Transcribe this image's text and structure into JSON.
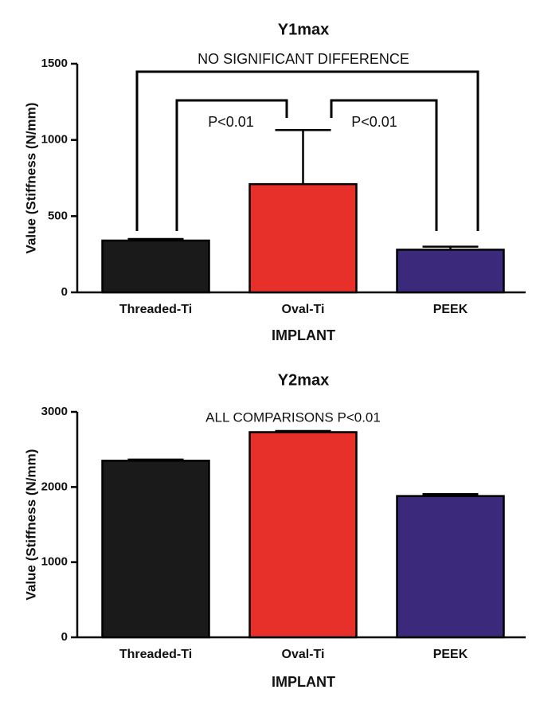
{
  "chart_data": [
    {
      "type": "bar",
      "title": "Y1max",
      "x_label": "IMPLANT",
      "y_label": "Value (Stiffness (N/mm)",
      "categories": [
        "Threaded-Ti",
        "Oval-Ti",
        "PEEK"
      ],
      "values": [
        340,
        710,
        280
      ],
      "errors": [
        10,
        355,
        20
      ],
      "colors": [
        "#1a1a1a",
        "#e8302a",
        "#3b2a7c"
      ],
      "ylim": [
        0,
        1500
      ],
      "yticks": [
        0,
        500,
        1000,
        1500
      ],
      "annotations": [
        "NO SIGNIFICANT DIFFERENCE",
        "P<0.01",
        "P<0.01"
      ]
    },
    {
      "type": "bar",
      "title": "Y2max",
      "x_label": "IMPLANT",
      "y_label": "Value (Stiffness (N/mm)",
      "categories": [
        "Threaded-Ti",
        "Oval-Ti",
        "PEEK"
      ],
      "values": [
        2350,
        2730,
        1880
      ],
      "errors": [
        15,
        15,
        25
      ],
      "colors": [
        "#1a1a1a",
        "#e8302a",
        "#3b2a7c"
      ],
      "ylim": [
        0,
        3000
      ],
      "yticks": [
        0,
        1000,
        2000,
        3000
      ],
      "annotations": [
        "ALL COMPARISONS P<0.01"
      ]
    }
  ]
}
